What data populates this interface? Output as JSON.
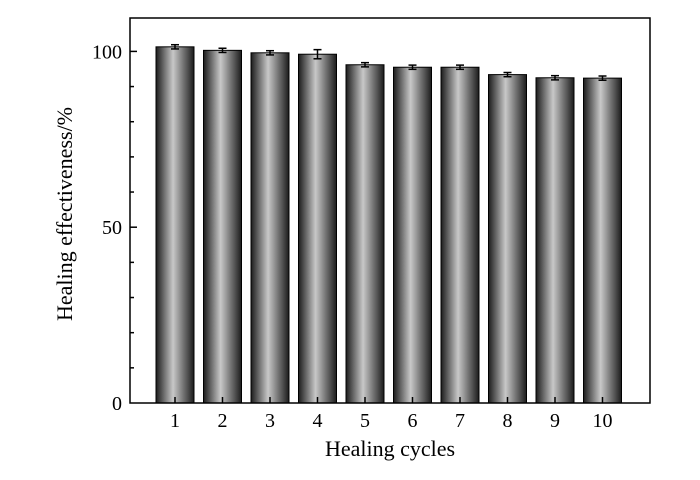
{
  "chart_data": {
    "type": "bar",
    "title": "",
    "xlabel": "Healing cycles",
    "ylabel": "Healing effectiveness/%",
    "categories": [
      "1",
      "2",
      "3",
      "4",
      "5",
      "6",
      "7",
      "8",
      "9",
      "10"
    ],
    "values": [
      101.3,
      100.3,
      99.6,
      99.2,
      96.2,
      95.5,
      95.5,
      93.4,
      92.5,
      92.4
    ],
    "errors": [
      0.6,
      0.6,
      0.6,
      1.3,
      0.6,
      0.6,
      0.6,
      0.6,
      0.6,
      0.6
    ],
    "ylim": [
      0,
      109.5
    ],
    "yticks": [
      0,
      50,
      100
    ],
    "grid": false,
    "legend": "none",
    "colors": {
      "bar_dark": "#1c1c1c",
      "bar_light": "#c8c8c8",
      "axis": "#000000",
      "error_bar": "#000000"
    }
  }
}
